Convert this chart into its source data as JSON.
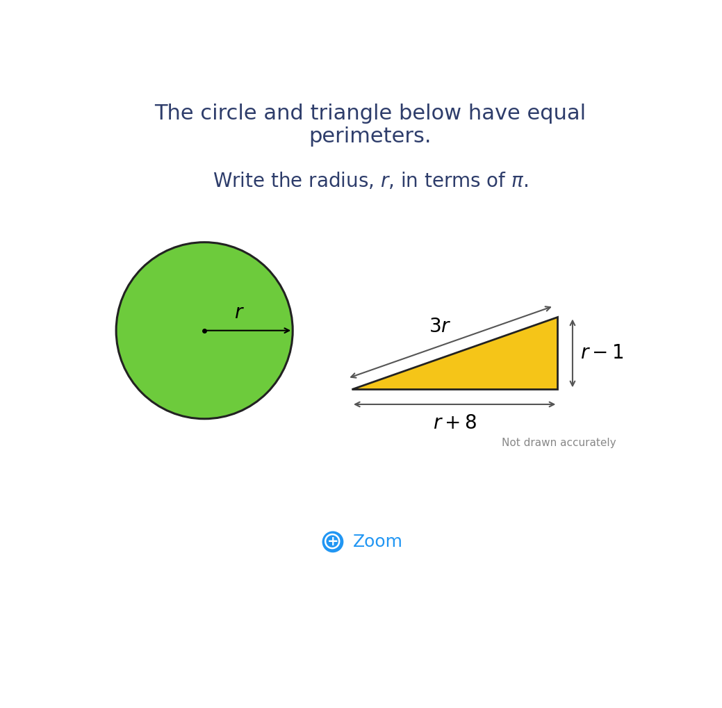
{
  "title_line1": "The circle and triangle below have equal",
  "title_line2": "perimeters.",
  "subtitle": "Write the radius, $r$, in terms of $\\pi$.",
  "background_color": "#ffffff",
  "text_color": "#2e3d6b",
  "circle_fill": "#6dcb3c",
  "circle_edge": "#222222",
  "triangle_fill": "#f5c518",
  "triangle_edge": "#222222",
  "arrow_color": "#555555",
  "title_fontsize": 22,
  "subtitle_fontsize": 20,
  "note_text": "Not drawn accurately",
  "note_fontsize": 11,
  "zoom_text": "Zoom",
  "zoom_fontsize": 18
}
